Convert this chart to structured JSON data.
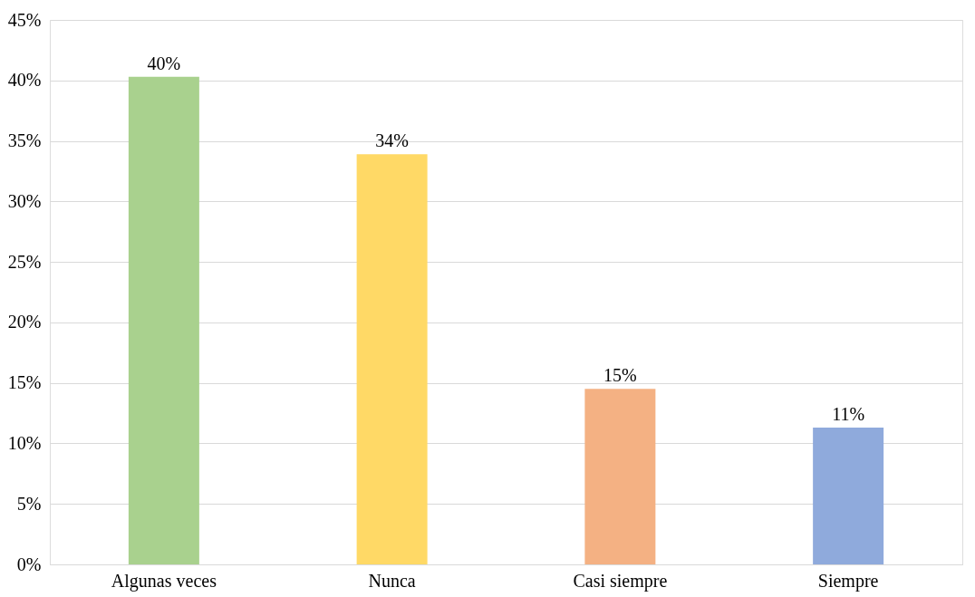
{
  "chart_data": {
    "type": "bar",
    "categories": [
      "Algunas veces",
      "Nunca",
      "Casi siempre",
      "Siempre"
    ],
    "values": [
      40.3,
      33.9,
      14.5,
      11.3
    ],
    "colors": [
      "#a9d18e",
      "#ffd966",
      "#f4b183",
      "#8faadc"
    ],
    "value_labels": [
      "40%",
      "34%",
      "15%",
      "11%"
    ],
    "ylim": [
      0,
      45
    ],
    "yticks": [
      {
        "value": 0,
        "label": "0%"
      },
      {
        "value": 5,
        "label": "5%"
      },
      {
        "value": 10,
        "label": "10%"
      },
      {
        "value": 15,
        "label": "15%"
      },
      {
        "value": 20,
        "label": "20%"
      },
      {
        "value": 25,
        "label": "25%"
      },
      {
        "value": 30,
        "label": "30%"
      },
      {
        "value": 35,
        "label": "35%"
      },
      {
        "value": 40,
        "label": "40%"
      },
      {
        "value": 45,
        "label": "45%"
      }
    ],
    "grid": "y"
  }
}
